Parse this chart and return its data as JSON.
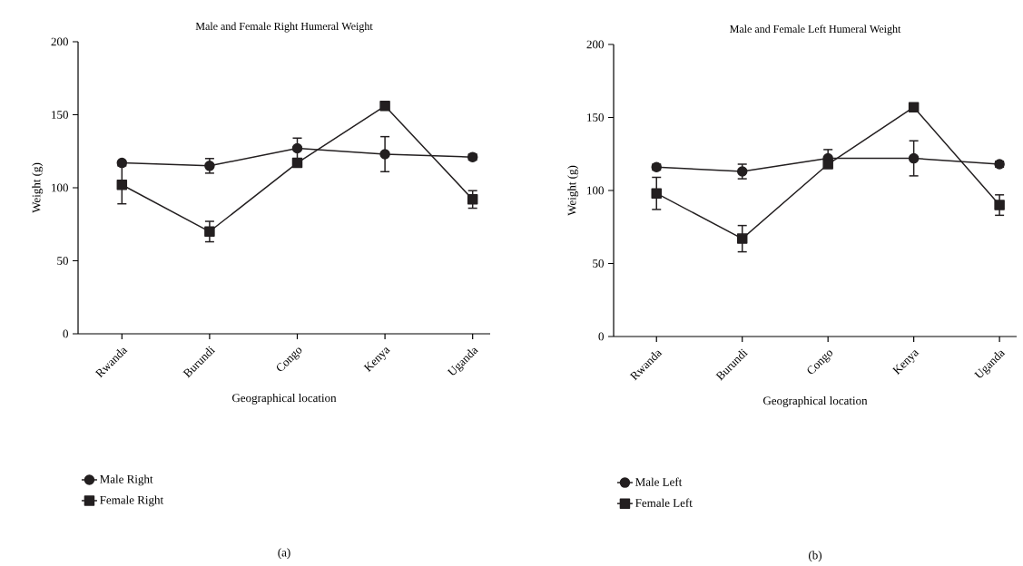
{
  "chart_data": [
    {
      "type": "line",
      "title": "Male and Female Right Humeral Weight",
      "xlabel": "Geographical location",
      "ylabel": "Weight (g)",
      "categories": [
        "Rwanda",
        "Burundi",
        "Congo",
        "Kenya",
        "Uganda"
      ],
      "series": [
        {
          "name": "Male Right",
          "color": "#231f20",
          "marker": "circle",
          "values": [
            117,
            115,
            127,
            123,
            121
          ],
          "errors": [
            null,
            5,
            7,
            12,
            2
          ]
        },
        {
          "name": "Female Right",
          "color": "#231f20",
          "marker": "square",
          "values": [
            102,
            70,
            117,
            156,
            92
          ],
          "errors": [
            13,
            7,
            null,
            null,
            6
          ]
        }
      ],
      "ylim": [
        0,
        200
      ],
      "yticks": [
        0,
        50,
        100,
        150,
        200
      ],
      "line_style": "solid",
      "legend": "bottom",
      "annotations": [
        "(a)"
      ]
    },
    {
      "type": "line",
      "title": "Male and Female Left Humeral Weight",
      "xlabel": "Geographical location",
      "ylabel": "Weight (g)",
      "categories": [
        "Rwanda",
        "Burundi",
        "Congo",
        "Kenya",
        "Uganda"
      ],
      "series": [
        {
          "name": "Male Left",
          "color": "#231f20",
          "marker": "circle",
          "values": [
            116,
            113,
            122,
            122,
            118
          ],
          "errors": [
            2,
            5,
            6,
            12,
            2
          ]
        },
        {
          "name": "Female Left",
          "color": "#231f20",
          "marker": "square",
          "values": [
            98,
            67,
            118,
            157,
            90
          ],
          "errors": [
            11,
            9,
            null,
            null,
            7
          ]
        }
      ],
      "ylim": [
        0,
        200
      ],
      "yticks": [
        0,
        50,
        100,
        150,
        200
      ],
      "line_style": "solid",
      "legend": "bottom",
      "annotations": [
        "(b)"
      ]
    }
  ]
}
